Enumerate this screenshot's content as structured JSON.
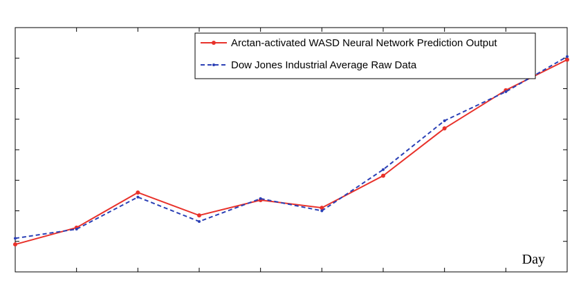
{
  "chart_data": {
    "type": "line",
    "title": "",
    "xlabel": "Day",
    "ylabel": "",
    "x": [
      1,
      2,
      3,
      4,
      5,
      6,
      7,
      8,
      9,
      10
    ],
    "xlim": [
      1,
      10
    ],
    "ylim": [
      0,
      8
    ],
    "grid": false,
    "legend_position": "top-right",
    "series": [
      {
        "name": "Arctan-activated WASD Neural Network Prediction Output",
        "color": "#e8312a",
        "style": "solid",
        "marker": "circle",
        "values": [
          0.9,
          1.45,
          2.6,
          1.85,
          2.35,
          2.1,
          3.15,
          4.7,
          5.95,
          6.95
        ]
      },
      {
        "name": "Dow Jones Industrial Average Raw Data",
        "color": "#2a3fb5",
        "style": "dashed",
        "marker": "dot",
        "values": [
          1.1,
          1.4,
          2.45,
          1.65,
          2.4,
          2.0,
          3.35,
          4.95,
          5.9,
          7.05
        ]
      }
    ]
  }
}
